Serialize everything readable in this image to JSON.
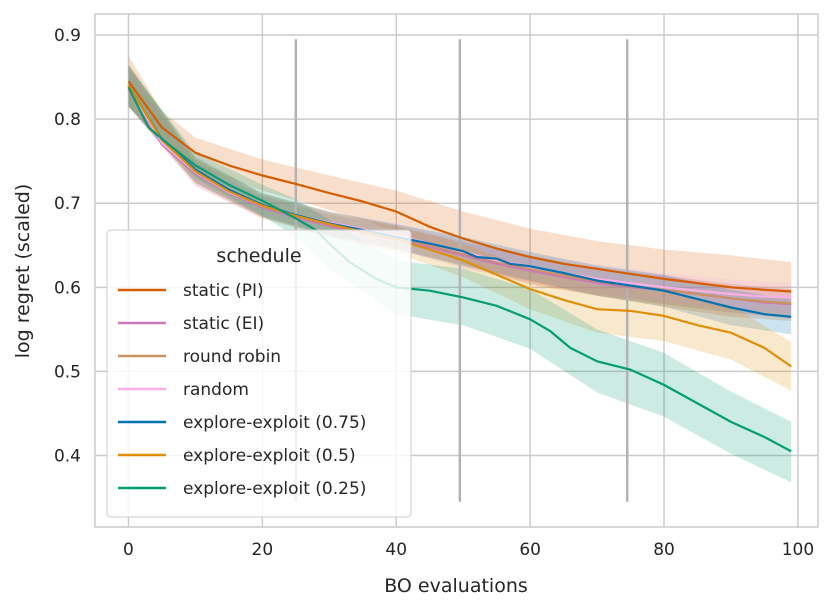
{
  "chart_data": {
    "type": "line",
    "title": "",
    "xlabel": "BO evaluations",
    "ylabel": "log regret (scaled)",
    "xlim": [
      -5,
      103
    ],
    "ylim": [
      0.315,
      0.925
    ],
    "x_ticks": [
      0,
      20,
      40,
      60,
      80,
      100
    ],
    "x_tick_labels": [
      "0",
      "20",
      "40",
      "60",
      "80",
      "100"
    ],
    "y_ticks": [
      0.4,
      0.5,
      0.6,
      0.7,
      0.8,
      0.9
    ],
    "y_tick_labels": [
      "0.4",
      "0.5",
      "0.6",
      "0.7",
      "0.8",
      "0.9"
    ],
    "grid": true,
    "legend_title": "schedule",
    "legend_position": "lower-left",
    "vertical_markers": [
      {
        "x": 25,
        "y_range": [
          0.345,
          0.895
        ]
      },
      {
        "x": 49.5,
        "y_range": [
          0.345,
          0.895
        ]
      },
      {
        "x": 74.5,
        "y_range": [
          0.345,
          0.895
        ]
      }
    ],
    "series": [
      {
        "name": "static (PI)",
        "color": "#d55e00",
        "points": [
          [
            0,
            0.845
          ],
          [
            5,
            0.79
          ],
          [
            10,
            0.76
          ],
          [
            15,
            0.745
          ],
          [
            20,
            0.733
          ],
          [
            25,
            0.723
          ],
          [
            30,
            0.712
          ],
          [
            35,
            0.702
          ],
          [
            40,
            0.69
          ],
          [
            45,
            0.672
          ],
          [
            50,
            0.658
          ],
          [
            55,
            0.646
          ],
          [
            60,
            0.636
          ],
          [
            65,
            0.628
          ],
          [
            70,
            0.622
          ],
          [
            75,
            0.616
          ],
          [
            80,
            0.61
          ],
          [
            85,
            0.605
          ],
          [
            90,
            0.6
          ],
          [
            95,
            0.597
          ],
          [
            99,
            0.595
          ]
        ],
        "band": [
          [
            0,
            0.875,
            0.815
          ],
          [
            5,
            0.81,
            0.77
          ],
          [
            10,
            0.778,
            0.742
          ],
          [
            20,
            0.752,
            0.715
          ],
          [
            30,
            0.733,
            0.692
          ],
          [
            40,
            0.715,
            0.667
          ],
          [
            50,
            0.69,
            0.628
          ],
          [
            60,
            0.67,
            0.603
          ],
          [
            70,
            0.655,
            0.59
          ],
          [
            80,
            0.645,
            0.577
          ],
          [
            90,
            0.638,
            0.565
          ],
          [
            99,
            0.63,
            0.56
          ]
        ]
      },
      {
        "name": "static (EI)",
        "color": "#cc78bc",
        "points": [
          [
            0,
            0.835
          ],
          [
            5,
            0.77
          ],
          [
            10,
            0.735
          ],
          [
            15,
            0.712
          ],
          [
            20,
            0.695
          ],
          [
            25,
            0.683
          ],
          [
            30,
            0.673
          ],
          [
            35,
            0.665
          ],
          [
            40,
            0.658
          ],
          [
            45,
            0.648
          ],
          [
            50,
            0.638
          ],
          [
            55,
            0.628
          ],
          [
            60,
            0.62
          ],
          [
            65,
            0.612
          ],
          [
            70,
            0.605
          ],
          [
            75,
            0.6
          ],
          [
            80,
            0.597
          ],
          [
            85,
            0.592
          ],
          [
            90,
            0.587
          ],
          [
            95,
            0.582
          ],
          [
            99,
            0.58
          ]
        ],
        "band": [
          [
            0,
            0.86,
            0.815
          ],
          [
            10,
            0.748,
            0.72
          ],
          [
            20,
            0.708,
            0.682
          ],
          [
            30,
            0.686,
            0.66
          ],
          [
            40,
            0.672,
            0.645
          ],
          [
            50,
            0.653,
            0.623
          ],
          [
            60,
            0.636,
            0.605
          ],
          [
            70,
            0.622,
            0.59
          ],
          [
            80,
            0.614,
            0.58
          ],
          [
            90,
            0.604,
            0.57
          ],
          [
            99,
            0.597,
            0.563
          ]
        ]
      },
      {
        "name": "round robin",
        "color": "#ca9161",
        "points": [
          [
            0,
            0.84
          ],
          [
            5,
            0.775
          ],
          [
            10,
            0.738
          ],
          [
            15,
            0.714
          ],
          [
            20,
            0.697
          ],
          [
            25,
            0.685
          ],
          [
            30,
            0.675
          ],
          [
            35,
            0.667
          ],
          [
            40,
            0.66
          ],
          [
            45,
            0.65
          ],
          [
            50,
            0.64
          ],
          [
            55,
            0.63
          ],
          [
            60,
            0.622
          ],
          [
            65,
            0.614
          ],
          [
            70,
            0.607
          ],
          [
            75,
            0.601
          ],
          [
            80,
            0.597
          ],
          [
            85,
            0.592
          ],
          [
            90,
            0.587
          ],
          [
            95,
            0.583
          ],
          [
            99,
            0.581
          ]
        ],
        "band": [
          [
            0,
            0.865,
            0.818
          ],
          [
            10,
            0.752,
            0.724
          ],
          [
            20,
            0.71,
            0.684
          ],
          [
            30,
            0.688,
            0.662
          ],
          [
            40,
            0.674,
            0.646
          ],
          [
            50,
            0.655,
            0.625
          ],
          [
            60,
            0.638,
            0.607
          ],
          [
            70,
            0.624,
            0.591
          ],
          [
            80,
            0.614,
            0.58
          ],
          [
            90,
            0.604,
            0.57
          ],
          [
            99,
            0.598,
            0.564
          ]
        ]
      },
      {
        "name": "random",
        "color": "#fbafe4",
        "points": [
          [
            0,
            0.838
          ],
          [
            5,
            0.772
          ],
          [
            10,
            0.737
          ],
          [
            15,
            0.713
          ],
          [
            20,
            0.697
          ],
          [
            25,
            0.686
          ],
          [
            30,
            0.677
          ],
          [
            35,
            0.669
          ],
          [
            40,
            0.662
          ],
          [
            45,
            0.652
          ],
          [
            50,
            0.642
          ],
          [
            55,
            0.632
          ],
          [
            60,
            0.624
          ],
          [
            65,
            0.617
          ],
          [
            70,
            0.61
          ],
          [
            75,
            0.605
          ],
          [
            80,
            0.6
          ],
          [
            85,
            0.596
          ],
          [
            90,
            0.592
          ],
          [
            95,
            0.589
          ],
          [
            99,
            0.588
          ]
        ],
        "band": [
          [
            0,
            0.862,
            0.815
          ],
          [
            10,
            0.75,
            0.723
          ],
          [
            20,
            0.71,
            0.684
          ],
          [
            30,
            0.69,
            0.664
          ],
          [
            40,
            0.676,
            0.648
          ],
          [
            50,
            0.657,
            0.627
          ],
          [
            60,
            0.64,
            0.608
          ],
          [
            70,
            0.627,
            0.593
          ],
          [
            80,
            0.617,
            0.583
          ],
          [
            90,
            0.609,
            0.575
          ],
          [
            99,
            0.605,
            0.571
          ]
        ]
      },
      {
        "name": "explore-exploit (0.75)",
        "color": "#0173b2",
        "points": [
          [
            0,
            0.84
          ],
          [
            5,
            0.776
          ],
          [
            10,
            0.74
          ],
          [
            15,
            0.716
          ],
          [
            20,
            0.698
          ],
          [
            25,
            0.686
          ],
          [
            30,
            0.676
          ],
          [
            35,
            0.668
          ],
          [
            40,
            0.66
          ],
          [
            45,
            0.652
          ],
          [
            50,
            0.643
          ],
          [
            52,
            0.636
          ],
          [
            55,
            0.634
          ],
          [
            57,
            0.628
          ],
          [
            60,
            0.625
          ],
          [
            65,
            0.617
          ],
          [
            70,
            0.608
          ],
          [
            75,
            0.602
          ],
          [
            80,
            0.596
          ],
          [
            85,
            0.586
          ],
          [
            90,
            0.576
          ],
          [
            95,
            0.568
          ],
          [
            99,
            0.565
          ]
        ],
        "band": [
          [
            0,
            0.865,
            0.815
          ],
          [
            10,
            0.755,
            0.725
          ],
          [
            20,
            0.712,
            0.684
          ],
          [
            30,
            0.69,
            0.662
          ],
          [
            40,
            0.675,
            0.645
          ],
          [
            50,
            0.66,
            0.626
          ],
          [
            60,
            0.642,
            0.608
          ],
          [
            70,
            0.626,
            0.59
          ],
          [
            80,
            0.615,
            0.577
          ],
          [
            90,
            0.597,
            0.555
          ],
          [
            99,
            0.586,
            0.544
          ]
        ]
      },
      {
        "name": "explore-exploit (0.5)",
        "color": "#de8f05",
        "points": [
          [
            0,
            0.84
          ],
          [
            5,
            0.775
          ],
          [
            10,
            0.738
          ],
          [
            15,
            0.714
          ],
          [
            20,
            0.697
          ],
          [
            25,
            0.685
          ],
          [
            30,
            0.675
          ],
          [
            35,
            0.666
          ],
          [
            40,
            0.657
          ],
          [
            45,
            0.645
          ],
          [
            50,
            0.632
          ],
          [
            55,
            0.615
          ],
          [
            60,
            0.598
          ],
          [
            65,
            0.585
          ],
          [
            70,
            0.574
          ],
          [
            75,
            0.572
          ],
          [
            80,
            0.566
          ],
          [
            85,
            0.555
          ],
          [
            90,
            0.546
          ],
          [
            95,
            0.528
          ],
          [
            99,
            0.506
          ]
        ],
        "band": [
          [
            0,
            0.865,
            0.815
          ],
          [
            10,
            0.753,
            0.723
          ],
          [
            20,
            0.712,
            0.682
          ],
          [
            30,
            0.69,
            0.66
          ],
          [
            40,
            0.673,
            0.641
          ],
          [
            50,
            0.652,
            0.612
          ],
          [
            60,
            0.622,
            0.574
          ],
          [
            70,
            0.602,
            0.546
          ],
          [
            80,
            0.596,
            0.536
          ],
          [
            90,
            0.578,
            0.514
          ],
          [
            99,
            0.535,
            0.477
          ]
        ]
      },
      {
        "name": "explore-exploit (0.25)",
        "color": "#029e73",
        "points": [
          [
            0,
            0.838
          ],
          [
            3,
            0.79
          ],
          [
            6,
            0.77
          ],
          [
            10,
            0.745
          ],
          [
            15,
            0.722
          ],
          [
            20,
            0.703
          ],
          [
            25,
            0.682
          ],
          [
            28,
            0.668
          ],
          [
            30,
            0.652
          ],
          [
            33,
            0.63
          ],
          [
            37,
            0.61
          ],
          [
            40,
            0.6
          ],
          [
            45,
            0.596
          ],
          [
            50,
            0.588
          ],
          [
            55,
            0.578
          ],
          [
            60,
            0.562
          ],
          [
            63,
            0.548
          ],
          [
            66,
            0.528
          ],
          [
            70,
            0.512
          ],
          [
            75,
            0.502
          ],
          [
            80,
            0.484
          ],
          [
            85,
            0.462
          ],
          [
            90,
            0.44
          ],
          [
            95,
            0.422
          ],
          [
            99,
            0.405
          ]
        ],
        "band": [
          [
            0,
            0.862,
            0.815
          ],
          [
            10,
            0.76,
            0.73
          ],
          [
            20,
            0.722,
            0.685
          ],
          [
            25,
            0.705,
            0.66
          ],
          [
            30,
            0.68,
            0.622
          ],
          [
            40,
            0.632,
            0.568
          ],
          [
            50,
            0.622,
            0.555
          ],
          [
            60,
            0.598,
            0.527
          ],
          [
            70,
            0.55,
            0.475
          ],
          [
            80,
            0.522,
            0.446
          ],
          [
            90,
            0.476,
            0.402
          ],
          [
            99,
            0.44,
            0.368
          ]
        ]
      }
    ]
  }
}
